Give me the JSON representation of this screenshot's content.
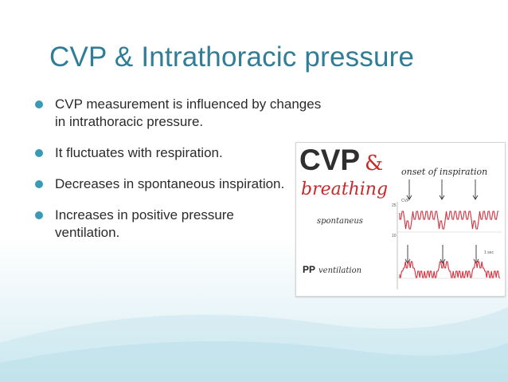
{
  "slide": {
    "title": "CVP & Intrathoracic pressure",
    "bullets": [
      {
        "text": "CVP measurement is influenced by changes in intrathoracic pressure."
      },
      {
        "text": "It fluctuates with respiration."
      },
      {
        "text": "Decreases in spontaneous inspiration."
      },
      {
        "text": "Increases in positive pressure ventilation."
      }
    ],
    "figure": {
      "heading_main": "CVP",
      "heading_amp": "&",
      "heading_sub": "breathing",
      "onset_label": "onset of inspiration",
      "spontaneous_label": "spontaneus",
      "pp_label": "PP",
      "ventilation_label": "ventilation",
      "trace_label": "CVP",
      "scale_top": "25",
      "scale_bottom": "10",
      "time_label": "1 sec"
    },
    "colors": {
      "title": "#2f7d97",
      "bullet": "#3a99b5",
      "trace": "#d0323f",
      "accent_red": "#c62b2b"
    }
  }
}
